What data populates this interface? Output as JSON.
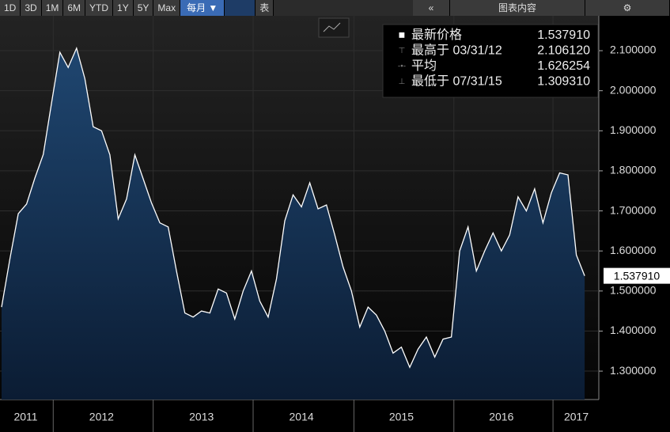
{
  "toolbar": {
    "ranges": [
      "1D",
      "3D",
      "1M",
      "6M",
      "YTD",
      "1Y",
      "5Y",
      "Max"
    ],
    "period": "每月 ▼",
    "table": "表",
    "collapse": "«",
    "content": "图表内容"
  },
  "chart_data": {
    "type": "area",
    "values": [
      1.46,
      1.58,
      1.693,
      1.717,
      1.782,
      1.841,
      1.97,
      2.096,
      2.058,
      2.10612,
      2.03,
      1.91,
      1.9,
      1.84,
      1.68,
      1.73,
      1.84,
      1.78,
      1.72,
      1.67,
      1.66,
      1.55,
      1.445,
      1.435,
      1.45,
      1.445,
      1.505,
      1.495,
      1.43,
      1.5,
      1.55,
      1.475,
      1.435,
      1.53,
      1.675,
      1.74,
      1.71,
      1.77,
      1.705,
      1.715,
      1.64,
      1.56,
      1.5,
      1.41,
      1.46,
      1.44,
      1.4,
      1.345,
      1.36,
      1.30931,
      1.355,
      1.385,
      1.335,
      1.38,
      1.385,
      1.6,
      1.66,
      1.55,
      1.6,
      1.645,
      1.6,
      1.64,
      1.735,
      1.7,
      1.755,
      1.67,
      1.745,
      1.795,
      1.79,
      1.59,
      1.53791
    ],
    "color": "#ffffff",
    "fill": "#153457",
    "xlim": [
      -0.19,
      71.7
    ],
    "xticks": [
      {
        "value": 2.9,
        "label": "2011"
      },
      {
        "value": 12,
        "label": "2012"
      },
      {
        "value": 24,
        "label": "2013"
      },
      {
        "value": 36,
        "label": "2014"
      },
      {
        "value": 48,
        "label": "2015"
      },
      {
        "value": 60,
        "label": "2016"
      },
      {
        "value": 69,
        "label": "2017"
      }
    ],
    "xgrid": [
      6.2,
      18.2,
      30.2,
      42.3,
      54.3,
      66.2
    ],
    "ylim": [
      1.229,
      2.187
    ],
    "yticks": [
      {
        "value": 1.3,
        "label": "1.300000"
      },
      {
        "value": 1.4,
        "label": "1.400000"
      },
      {
        "value": 1.5,
        "label": "1.500000"
      },
      {
        "value": 1.6,
        "label": "1.600000"
      },
      {
        "value": 1.7,
        "label": "1.700000"
      },
      {
        "value": 1.8,
        "label": "1.800000"
      },
      {
        "value": 1.9,
        "label": "1.900000"
      },
      {
        "value": 2.0,
        "label": "2.000000"
      },
      {
        "value": 2.1,
        "label": "2.100000"
      }
    ],
    "grid": true,
    "stats": [
      {
        "label": "最新价格",
        "value": 1.53791,
        "value_label": "1.537910"
      },
      {
        "label": "最高于 03/31/12",
        "value": 2.10612,
        "value_label": "2.106120"
      },
      {
        "label": "平均",
        "value": 1.626254,
        "value_label": "1.626254"
      },
      {
        "label": "最低于 07/31/15",
        "value": 1.30931,
        "value_label": "1.309310"
      }
    ]
  }
}
